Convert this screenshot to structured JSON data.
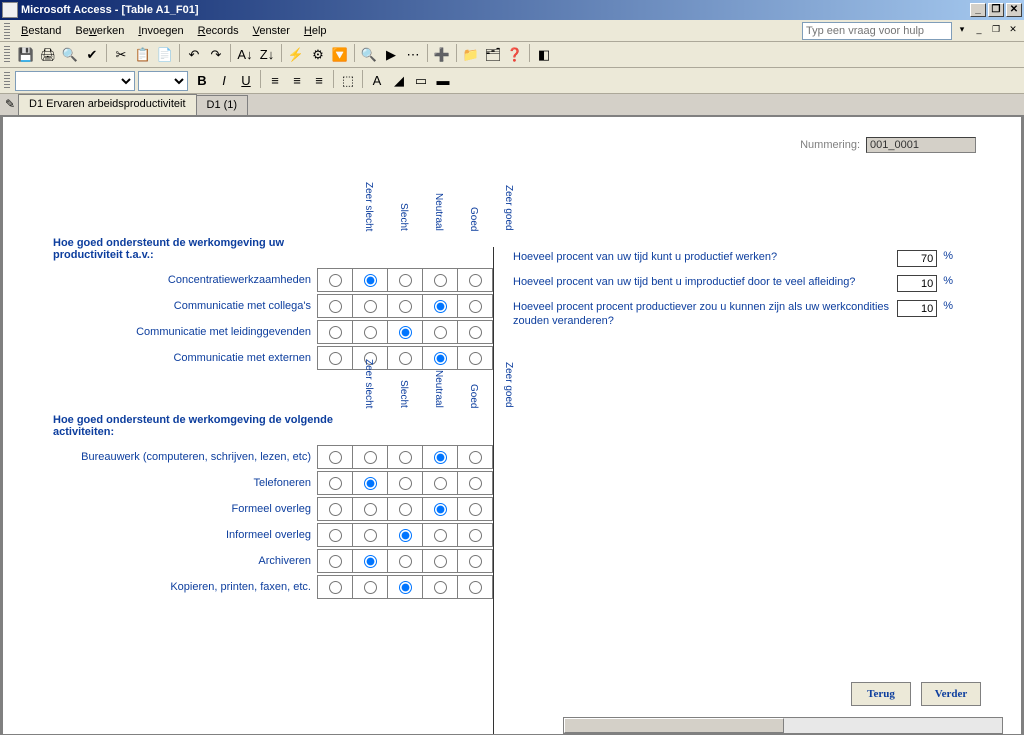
{
  "window": {
    "title": "Microsoft Access - [Table A1_F01]"
  },
  "menu": {
    "items": [
      "Bestand",
      "Bewerken",
      "Invoegen",
      "Records",
      "Venster",
      "Help"
    ],
    "underline_idx": [
      0,
      2,
      0,
      0,
      0,
      0
    ],
    "help_placeholder": "Typ een vraag voor hulp"
  },
  "tabs": {
    "active": "D1 Ervaren arbeidsproductiviteit",
    "inactive": "D1 (1)"
  },
  "nummering": {
    "label": "Nummering:",
    "value": "001_0001"
  },
  "scale_headers": [
    "Zeer slecht",
    "Slecht",
    "Neutraal",
    "Goed",
    "Zeer goed"
  ],
  "sec1": {
    "question": "Hoe goed ondersteunt de werkomgeving uw productiviteit t.a.v.:",
    "rows": [
      {
        "label": "Concentratiewerkzaamheden",
        "sel": 1
      },
      {
        "label": "Communicatie met collega's",
        "sel": 3
      },
      {
        "label": "Communicatie met leidinggevenden",
        "sel": 2
      },
      {
        "label": "Communicatie met externen",
        "sel": 3
      }
    ]
  },
  "sec2": {
    "question": "Hoe goed ondersteunt de werkomgeving de volgende activiteiten:",
    "rows": [
      {
        "label": "Bureauwerk (computeren, schrijven, lezen, etc)",
        "sel": 3
      },
      {
        "label": "Telefoneren",
        "sel": 1
      },
      {
        "label": "Formeel overleg",
        "sel": 3
      },
      {
        "label": "Informeel overleg",
        "sel": 2
      },
      {
        "label": "Archiveren",
        "sel": 1
      },
      {
        "label": "Kopieren, printen, faxen, etc.",
        "sel": 2
      }
    ]
  },
  "pct": {
    "rows": [
      {
        "q": "Hoeveel procent van uw tijd kunt u productief werken?",
        "v": "70"
      },
      {
        "q": "Hoeveel procent van uw tijd bent u improductief door te veel afleiding?",
        "v": "10"
      },
      {
        "q": "Hoeveel procent procent productiever zou u kunnen zijn als uw werkcondities zouden veranderen?",
        "v": "10"
      }
    ],
    "suffix": "%"
  },
  "buttons": {
    "back": "Terug",
    "next": "Verder"
  },
  "toolbar_icons": [
    "💾",
    "🖨",
    "🔍",
    "✔",
    "✂",
    "📋",
    "📄",
    "↶",
    "↷",
    "A↓",
    "Z↓",
    "⚡",
    "⚙",
    "🔽",
    "🔍",
    "▶",
    "⋯",
    "➕",
    "📁",
    "🗂",
    "❓",
    "◧"
  ],
  "format_icons": [
    "B",
    "I",
    "U",
    "≡",
    "≡",
    "≡",
    "⬚",
    "A",
    "◢",
    "▭",
    "▬"
  ]
}
